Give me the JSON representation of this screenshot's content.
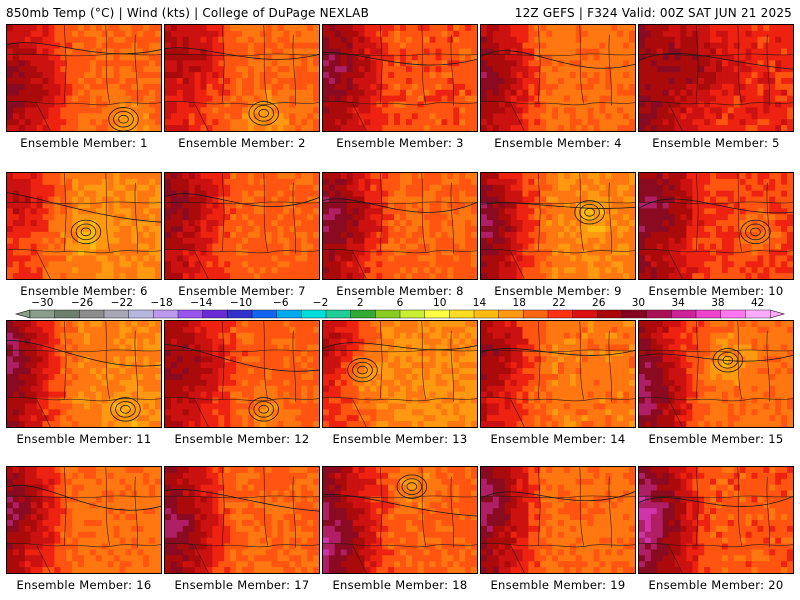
{
  "header": {
    "left": "850mb Temp (°C) | Wind (kts) | College of DuPage NEXLAB",
    "right": "12Z GEFS | F324 Valid: 00Z SAT JUN 21 2025"
  },
  "colorbar": {
    "tick_labels": [
      "-30",
      "-26",
      "-22",
      "-18",
      "-14",
      "-10",
      "-6",
      "-2",
      "2",
      "6",
      "10",
      "14",
      "18",
      "22",
      "26",
      "30",
      "34",
      "38",
      "42"
    ],
    "colors": [
      "#8a9c8a",
      "#6e7f6e",
      "#8c8c8c",
      "#a8a8b4",
      "#b6b6de",
      "#bb99ee",
      "#9955ee",
      "#6a2bd6",
      "#3333cc",
      "#1166ee",
      "#00aaee",
      "#00dddd",
      "#22cc99",
      "#33aa33",
      "#88cc22",
      "#ccee33",
      "#ffff44",
      "#ffdd22",
      "#ffbb11",
      "#ff9911",
      "#ff6611",
      "#ff3311",
      "#dd1111",
      "#aa0808",
      "#880022",
      "#aa1155",
      "#cc2299",
      "#ee44cc",
      "#ff77ee",
      "#ffaaff"
    ]
  },
  "members": [
    {
      "label": "Ensemble Member: 1"
    },
    {
      "label": "Ensemble Member: 2"
    },
    {
      "label": "Ensemble Member: 3"
    },
    {
      "label": "Ensemble Member: 4"
    },
    {
      "label": "Ensemble Member: 5"
    },
    {
      "label": "Ensemble Member: 6"
    },
    {
      "label": "Ensemble Member: 7"
    },
    {
      "label": "Ensemble Member: 8"
    },
    {
      "label": "Ensemble Member: 9"
    },
    {
      "label": "Ensemble Member: 10"
    },
    {
      "label": "Ensemble Member: 11"
    },
    {
      "label": "Ensemble Member: 12"
    },
    {
      "label": "Ensemble Member: 13"
    },
    {
      "label": "Ensemble Member: 14"
    },
    {
      "label": "Ensemble Member: 15"
    },
    {
      "label": "Ensemble Member: 16"
    },
    {
      "label": "Ensemble Member: 17"
    },
    {
      "label": "Ensemble Member: 18"
    },
    {
      "label": "Ensemble Member: 19"
    },
    {
      "label": "Ensemble Member: 20"
    }
  ]
}
